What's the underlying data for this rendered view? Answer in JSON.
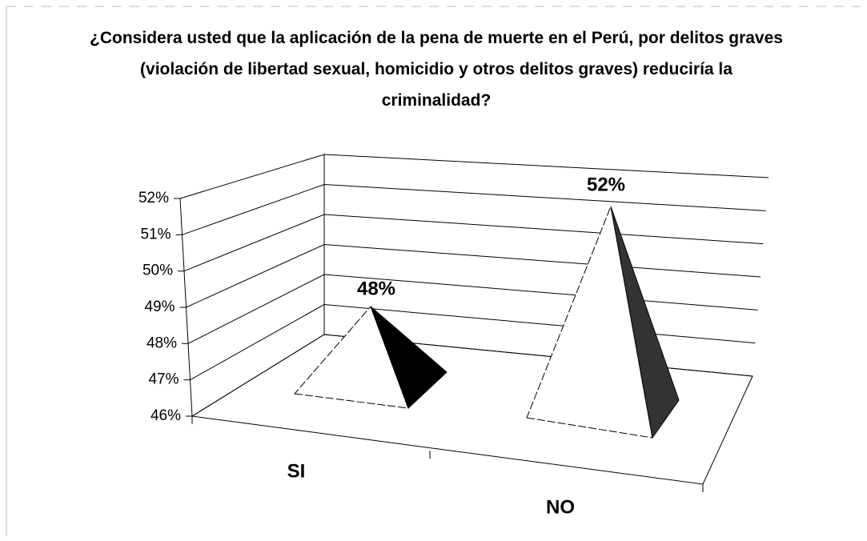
{
  "chart_data": {
    "type": "pyramid3d",
    "title": "¿Considera usted que la aplicación de la pena de muerte en el Perú, por delitos graves (violación de libertad sexual, homicidio y otros delitos graves) reduciría la criminalidad?",
    "categories": [
      "SI",
      "NO"
    ],
    "values": [
      48,
      52
    ],
    "value_labels": [
      "48%",
      "52%"
    ],
    "ylim": [
      46,
      52
    ],
    "yticks": [
      {
        "value": 46,
        "label": "46%"
      },
      {
        "value": 47,
        "label": "47%"
      },
      {
        "value": 48,
        "label": "48%"
      },
      {
        "value": 49,
        "label": "49%"
      },
      {
        "value": 50,
        "label": "50%"
      },
      {
        "value": 51,
        "label": "51%"
      },
      {
        "value": 52,
        "label": "52%"
      }
    ],
    "grid": true
  }
}
